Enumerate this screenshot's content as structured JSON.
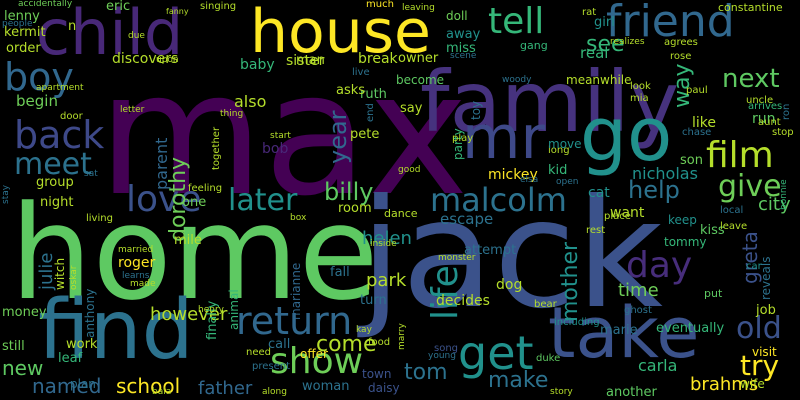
{
  "words": [
    {
      "text": "max",
      "color": "#440154"
    },
    {
      "text": "home",
      "color": "#5ec962"
    },
    {
      "text": "jack",
      "color": "#3b528b"
    },
    {
      "text": "family",
      "color": "#46327e"
    },
    {
      "text": "child",
      "color": "#482878"
    },
    {
      "text": "house",
      "color": "#fde725"
    },
    {
      "text": "mr",
      "color": "#3e4989"
    },
    {
      "text": "go",
      "color": "#21918c"
    },
    {
      "text": "find",
      "color": "#2c728e"
    },
    {
      "text": "take",
      "color": "#3b528b"
    },
    {
      "text": "friend",
      "color": "#31688e"
    },
    {
      "text": "tell",
      "color": "#35b779"
    },
    {
      "text": "boy",
      "color": "#31688e"
    },
    {
      "text": "back",
      "color": "#3e4989"
    },
    {
      "text": "get",
      "color": "#21918c"
    },
    {
      "text": "film",
      "color": "#b5de2b"
    },
    {
      "text": "return",
      "color": "#31688e"
    },
    {
      "text": "show",
      "color": "#6ece58"
    },
    {
      "text": "love",
      "color": "#3b528b"
    },
    {
      "text": "malcolm",
      "color": "#2c728e"
    },
    {
      "text": "later",
      "color": "#21918c"
    },
    {
      "text": "meet",
      "color": "#2c728e"
    },
    {
      "text": "day",
      "color": "#472d7b"
    },
    {
      "text": "see",
      "color": "#35b779"
    },
    {
      "text": "next",
      "color": "#5ec962"
    },
    {
      "text": "give",
      "color": "#6ece58"
    },
    {
      "text": "life",
      "color": "#21918c"
    },
    {
      "text": "old",
      "color": "#3b528b"
    },
    {
      "text": "try",
      "color": "#fde725"
    },
    {
      "text": "help",
      "color": "#2c728e"
    },
    {
      "text": "billy",
      "color": "#5ec962"
    },
    {
      "text": "year",
      "color": "#31688e"
    },
    {
      "text": "dorothy",
      "color": "#6ece58"
    },
    {
      "text": "mother",
      "color": "#21918c"
    },
    {
      "text": "tom",
      "color": "#2c728e"
    },
    {
      "text": "make",
      "color": "#2c728e"
    },
    {
      "text": "come",
      "color": "#b5de2b"
    },
    {
      "text": "school",
      "color": "#fde725"
    },
    {
      "text": "new",
      "color": "#5ec962"
    },
    {
      "text": "named",
      "color": "#31688e"
    },
    {
      "text": "father",
      "color": "#31688e"
    },
    {
      "text": "way",
      "color": "#35b779"
    },
    {
      "text": "park",
      "color": "#b5de2b"
    },
    {
      "text": "time",
      "color": "#6ece58"
    },
    {
      "text": "greta",
      "color": "#3b528b"
    },
    {
      "text": "also",
      "color": "#b5de2b"
    },
    {
      "text": "parent",
      "color": "#31688e"
    },
    {
      "text": "julie",
      "color": "#2c728e"
    },
    {
      "text": "helen",
      "color": "#21918c"
    },
    {
      "text": "however",
      "color": "#b5de2b"
    },
    {
      "text": "nicholas",
      "color": "#21918c"
    },
    {
      "text": "city",
      "color": "#5ec962"
    },
    {
      "text": "brahms",
      "color": "#fde725"
    },
    {
      "text": "carla",
      "color": "#35b779"
    },
    {
      "text": "ruth",
      "color": "#5ec962"
    },
    {
      "text": "begin",
      "color": "#6ece58"
    },
    {
      "text": "baby",
      "color": "#35b779"
    },
    {
      "text": "sister",
      "color": "#b5de2b"
    },
    {
      "text": "break",
      "color": "#b5de2b"
    },
    {
      "text": "discovers",
      "color": "#b5de2b"
    },
    {
      "text": "real",
      "color": "#35b779"
    },
    {
      "text": "lenny",
      "color": "#6ece58"
    },
    {
      "text": "kermit",
      "color": "#b5de2b"
    },
    {
      "text": "order",
      "color": "#b5de2b"
    },
    {
      "text": "eric",
      "color": "#6ece58"
    },
    {
      "text": "accidentally",
      "color": "#6ece58"
    },
    {
      "text": "gang",
      "color": "#35b779"
    },
    {
      "text": "girl",
      "color": "#21918c"
    },
    {
      "text": "miss",
      "color": "#35b779"
    },
    {
      "text": "away",
      "color": "#21918c"
    },
    {
      "text": "become",
      "color": "#5ec962"
    },
    {
      "text": "say",
      "color": "#b5de2b"
    },
    {
      "text": "owner",
      "color": "#b5de2b"
    },
    {
      "text": "party",
      "color": "#35b779"
    },
    {
      "text": "toy",
      "color": "#2c728e"
    },
    {
      "text": "mickey",
      "color": "#fde725"
    },
    {
      "text": "kid",
      "color": "#35b779"
    },
    {
      "text": "pete",
      "color": "#b5de2b"
    },
    {
      "text": "bob",
      "color": "#482878"
    },
    {
      "text": "asks",
      "color": "#b5de2b"
    },
    {
      "text": "group",
      "color": "#b5de2b"
    },
    {
      "text": "night",
      "color": "#b5de2b"
    },
    {
      "text": "room",
      "color": "#b5de2b"
    },
    {
      "text": "escape",
      "color": "#2c728e"
    },
    {
      "text": "dance",
      "color": "#b5de2b"
    },
    {
      "text": "attempt",
      "color": "#2c728e"
    },
    {
      "text": "want",
      "color": "#b5de2b"
    },
    {
      "text": "cat",
      "color": "#21918c"
    },
    {
      "text": "kiss",
      "color": "#5ec962"
    },
    {
      "text": "keep",
      "color": "#21918c"
    },
    {
      "text": "tommy",
      "color": "#35b779"
    },
    {
      "text": "witch",
      "color": "#b5de2b"
    },
    {
      "text": "anthony",
      "color": "#2c728e"
    },
    {
      "text": "roger",
      "color": "#fde725"
    },
    {
      "text": "dog",
      "color": "#b5de2b"
    },
    {
      "text": "fall",
      "color": "#2c728e"
    },
    {
      "text": "turn",
      "color": "#2c728e"
    },
    {
      "text": "decides",
      "color": "#b5de2b"
    },
    {
      "text": "marie",
      "color": "#2c728e"
    },
    {
      "text": "job",
      "color": "#b5de2b"
    },
    {
      "text": "eventually",
      "color": "#35b779"
    },
    {
      "text": "visit",
      "color": "#fde725"
    },
    {
      "text": "work",
      "color": "#b5de2b"
    },
    {
      "text": "leaf",
      "color": "#35b779"
    },
    {
      "text": "money",
      "color": "#6ece58"
    },
    {
      "text": "still",
      "color": "#6ece58"
    },
    {
      "text": "call",
      "color": "#2c728e"
    },
    {
      "text": "offer",
      "color": "#fde725"
    },
    {
      "text": "woman",
      "color": "#2c728e"
    },
    {
      "text": "town",
      "color": "#3b528b"
    },
    {
      "text": "daisy",
      "color": "#3b528b"
    },
    {
      "text": "another",
      "color": "#5ec962"
    },
    {
      "text": "plan",
      "color": "#2c728e"
    },
    {
      "text": "mile",
      "color": "#b5de2b"
    },
    {
      "text": "one",
      "color": "#6ece58"
    },
    {
      "text": "marianne",
      "color": "#31688e"
    },
    {
      "text": "finally",
      "color": "#35b779"
    },
    {
      "text": "animal",
      "color": "#35b779"
    },
    {
      "text": "son",
      "color": "#6ece58"
    },
    {
      "text": "like",
      "color": "#b5de2b"
    },
    {
      "text": "run",
      "color": "#5ec962"
    },
    {
      "text": "uncle",
      "color": "#b5de2b"
    },
    {
      "text": "arrives",
      "color": "#35b779"
    },
    {
      "text": "reveals",
      "color": "#2c728e"
    },
    {
      "text": "meanwhile",
      "color": "#b5de2b"
    },
    {
      "text": "n",
      "color": "#b5de2b"
    },
    {
      "text": "doll",
      "color": "#6ece58"
    },
    {
      "text": "song",
      "color": "#3b528b"
    },
    {
      "text": "food",
      "color": "#b5de2b"
    },
    {
      "text": "need",
      "color": "#b5de2b"
    },
    {
      "text": "present",
      "color": "#2c728e"
    },
    {
      "text": "henry",
      "color": "#b5de2b"
    },
    {
      "text": "bear",
      "color": "#b5de2b"
    },
    {
      "text": "duke",
      "color": "#5ec962"
    },
    {
      "text": "ghost",
      "color": "#2c728e"
    },
    {
      "text": "put",
      "color": "#5ec962"
    },
    {
      "text": "wife",
      "color": "#b5de2b"
    },
    {
      "text": "stop",
      "color": "#b5de2b"
    },
    {
      "text": "chase",
      "color": "#2c728e"
    },
    {
      "text": "aunt",
      "color": "#b5de2b"
    },
    {
      "text": "leave",
      "color": "#b5de2b"
    },
    {
      "text": "local",
      "color": "#2c728e"
    },
    {
      "text": "car",
      "color": "#21918c"
    },
    {
      "text": "bonnie",
      "color": "#35b779"
    },
    {
      "text": "including",
      "color": "#21918c"
    },
    {
      "text": "rest",
      "color": "#b5de2b"
    },
    {
      "text": "place",
      "color": "#b5de2b"
    },
    {
      "text": "open",
      "color": "#2c728e"
    },
    {
      "text": "elsa",
      "color": "#2c728e"
    },
    {
      "text": "good",
      "color": "#b5de2b"
    },
    {
      "text": "long",
      "color": "#b5de2b"
    },
    {
      "text": "move",
      "color": "#21918c"
    },
    {
      "text": "woody",
      "color": "#2c728e"
    },
    {
      "text": "play",
      "color": "#b5de2b"
    },
    {
      "text": "start",
      "color": "#b5de2b"
    },
    {
      "text": "thing",
      "color": "#b5de2b"
    },
    {
      "text": "live",
      "color": "#2c728e"
    },
    {
      "text": "man",
      "color": "#b5de2b"
    },
    {
      "text": "end",
      "color": "#2c728e"
    },
    {
      "text": "apartment",
      "color": "#b5de2b"
    },
    {
      "text": "upon",
      "color": "#b5de2b"
    },
    {
      "text": "due",
      "color": "#b5de2b"
    },
    {
      "text": "door",
      "color": "#b5de2b"
    },
    {
      "text": "letter",
      "color": "#b5de2b"
    },
    {
      "text": "singing",
      "color": "#b5de2b"
    },
    {
      "text": "fanny",
      "color": "#b5de2b"
    },
    {
      "text": "much",
      "color": "#fde725"
    },
    {
      "text": "leaving",
      "color": "#b5de2b"
    },
    {
      "text": "rat",
      "color": "#b5de2b"
    },
    {
      "text": "constantine",
      "color": "#b5de2b"
    },
    {
      "text": "people",
      "color": "#2c728e"
    },
    {
      "text": "scene",
      "color": "#2c728e"
    },
    {
      "text": "realizes",
      "color": "#b5de2b"
    },
    {
      "text": "agrees",
      "color": "#b5de2b"
    },
    {
      "text": "rose",
      "color": "#b5de2b"
    },
    {
      "text": "look",
      "color": "#b5de2b"
    },
    {
      "text": "mia",
      "color": "#b5de2b"
    },
    {
      "text": "paul",
      "color": "#b5de2b"
    },
    {
      "text": "ron",
      "color": "#2c728e"
    },
    {
      "text": "feeling",
      "color": "#b5de2b"
    },
    {
      "text": "together",
      "color": "#b5de2b"
    },
    {
      "text": "box",
      "color": "#b5de2b"
    },
    {
      "text": "living",
      "color": "#b5de2b"
    },
    {
      "text": "married",
      "color": "#b5de2b"
    },
    {
      "text": "learns",
      "color": "#2c728e"
    },
    {
      "text": "made",
      "color": "#b5de2b"
    },
    {
      "text": "oskar",
      "color": "#b5de2b"
    },
    {
      "text": "kay",
      "color": "#b5de2b"
    },
    {
      "text": "marry",
      "color": "#b5de2b"
    },
    {
      "text": "inside",
      "color": "#b5de2b"
    },
    {
      "text": "monster",
      "color": "#b5de2b"
    },
    {
      "text": "young",
      "color": "#2c728e"
    },
    {
      "text": "along",
      "color": "#b5de2b"
    },
    {
      "text": "bala",
      "color": "#b5de2b"
    },
    {
      "text": "story",
      "color": "#b5de2b"
    },
    {
      "text": "stay",
      "color": "#2c728e"
    },
    {
      "text": "sat",
      "color": "#2c728e"
    }
  ]
}
